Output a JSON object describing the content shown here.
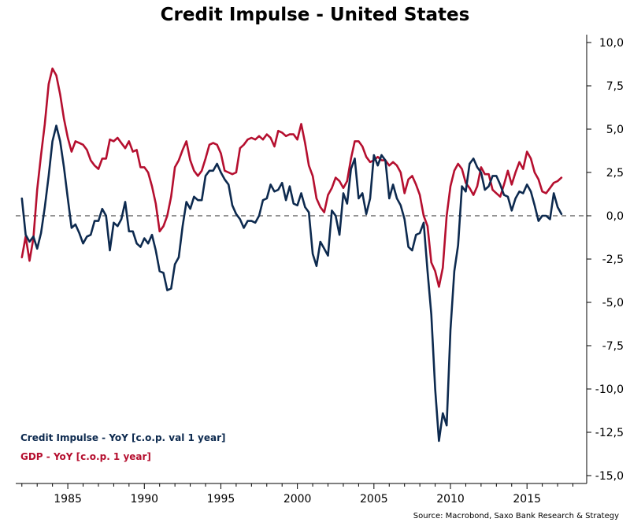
{
  "chart_data": {
    "type": "line",
    "title": "Credit Impulse - United States",
    "source": "Source: Macrobond, Saxo Bank Research & Strategy",
    "xlim": [
      1981.6,
      2018.9
    ],
    "ylim": [
      -15,
      10
    ],
    "x_ticks": [
      1985,
      1990,
      1995,
      2000,
      2005,
      2010,
      2015
    ],
    "y_ticks": [
      {
        "value": 10,
        "label": "10,0"
      },
      {
        "value": 7.5,
        "label": "7,5"
      },
      {
        "value": 5,
        "label": "5,0"
      },
      {
        "value": 2.5,
        "label": "2,5"
      },
      {
        "value": 0,
        "label": "0,0"
      },
      {
        "value": -2.5,
        "label": "-2,5"
      },
      {
        "value": -5,
        "label": "-5,0"
      },
      {
        "value": -7.5,
        "label": "-7,5"
      },
      {
        "value": -10,
        "label": "-10,0"
      },
      {
        "value": -12.5,
        "label": "-12,5"
      },
      {
        "value": -15,
        "label": "-15,0"
      }
    ],
    "zero_line": true,
    "grid": false,
    "legend_position": "bottom-left",
    "series": [
      {
        "name": "Credit Impulse - YoY [c.o.p. val 1 year]",
        "color": "#0d2a4f",
        "points": [
          [
            1982.0,
            1.0
          ],
          [
            1982.25,
            -1.1
          ],
          [
            1982.5,
            -1.5
          ],
          [
            1982.75,
            -1.2
          ],
          [
            1983.0,
            -1.9
          ],
          [
            1983.25,
            -1.0
          ],
          [
            1983.5,
            0.5
          ],
          [
            1983.75,
            2.3
          ],
          [
            1984.0,
            4.3
          ],
          [
            1984.25,
            5.2
          ],
          [
            1984.5,
            4.3
          ],
          [
            1984.75,
            2.8
          ],
          [
            1985.0,
            1.0
          ],
          [
            1985.25,
            -0.7
          ],
          [
            1985.5,
            -0.5
          ],
          [
            1985.75,
            -1.0
          ],
          [
            1986.0,
            -1.6
          ],
          [
            1986.25,
            -1.2
          ],
          [
            1986.5,
            -1.1
          ],
          [
            1986.75,
            -0.3
          ],
          [
            1987.0,
            -0.3
          ],
          [
            1987.25,
            0.4
          ],
          [
            1987.5,
            0.0
          ],
          [
            1987.75,
            -2.0
          ],
          [
            1988.0,
            -0.4
          ],
          [
            1988.25,
            -0.6
          ],
          [
            1988.5,
            -0.2
          ],
          [
            1988.75,
            0.8
          ],
          [
            1989.0,
            -0.9
          ],
          [
            1989.25,
            -0.9
          ],
          [
            1989.5,
            -1.6
          ],
          [
            1989.75,
            -1.8
          ],
          [
            1990.0,
            -1.3
          ],
          [
            1990.25,
            -1.6
          ],
          [
            1990.5,
            -1.1
          ],
          [
            1990.75,
            -2.0
          ],
          [
            1991.0,
            -3.2
          ],
          [
            1991.25,
            -3.3
          ],
          [
            1991.5,
            -4.3
          ],
          [
            1991.75,
            -4.2
          ],
          [
            1992.0,
            -2.8
          ],
          [
            1992.25,
            -2.4
          ],
          [
            1992.5,
            -0.6
          ],
          [
            1992.75,
            0.8
          ],
          [
            1993.0,
            0.4
          ],
          [
            1993.25,
            1.1
          ],
          [
            1993.5,
            0.9
          ],
          [
            1993.75,
            0.9
          ],
          [
            1994.0,
            2.3
          ],
          [
            1994.25,
            2.6
          ],
          [
            1994.5,
            2.6
          ],
          [
            1994.75,
            3.0
          ],
          [
            1995.0,
            2.5
          ],
          [
            1995.25,
            2.1
          ],
          [
            1995.5,
            1.8
          ],
          [
            1995.75,
            0.6
          ],
          [
            1996.0,
            0.1
          ],
          [
            1996.25,
            -0.2
          ],
          [
            1996.5,
            -0.7
          ],
          [
            1996.75,
            -0.3
          ],
          [
            1997.0,
            -0.3
          ],
          [
            1997.25,
            -0.4
          ],
          [
            1997.5,
            0.0
          ],
          [
            1997.75,
            0.9
          ],
          [
            1998.0,
            1.0
          ],
          [
            1998.25,
            1.8
          ],
          [
            1998.5,
            1.4
          ],
          [
            1998.75,
            1.5
          ],
          [
            1999.0,
            1.9
          ],
          [
            1999.25,
            0.9
          ],
          [
            1999.5,
            1.7
          ],
          [
            1999.75,
            0.7
          ],
          [
            2000.0,
            0.6
          ],
          [
            2000.25,
            1.3
          ],
          [
            2000.5,
            0.5
          ],
          [
            2000.75,
            0.2
          ],
          [
            2001.0,
            -2.2
          ],
          [
            2001.25,
            -2.9
          ],
          [
            2001.5,
            -1.5
          ],
          [
            2001.75,
            -1.9
          ],
          [
            2002.0,
            -2.3
          ],
          [
            2002.25,
            0.3
          ],
          [
            2002.5,
            0.0
          ],
          [
            2002.75,
            -1.1
          ],
          [
            2003.0,
            1.3
          ],
          [
            2003.25,
            0.7
          ],
          [
            2003.5,
            2.7
          ],
          [
            2003.75,
            3.3
          ],
          [
            2004.0,
            1.0
          ],
          [
            2004.25,
            1.3
          ],
          [
            2004.5,
            0.1
          ],
          [
            2004.75,
            1.0
          ],
          [
            2005.0,
            3.5
          ],
          [
            2005.25,
            2.9
          ],
          [
            2005.5,
            3.5
          ],
          [
            2005.75,
            3.2
          ],
          [
            2006.0,
            1.0
          ],
          [
            2006.25,
            1.8
          ],
          [
            2006.5,
            1.0
          ],
          [
            2006.75,
            0.6
          ],
          [
            2007.0,
            -0.2
          ],
          [
            2007.25,
            -1.8
          ],
          [
            2007.5,
            -2.0
          ],
          [
            2007.75,
            -1.1
          ],
          [
            2008.0,
            -1.0
          ],
          [
            2008.25,
            -0.4
          ],
          [
            2008.5,
            -3.2
          ],
          [
            2008.75,
            -5.7
          ],
          [
            2009.0,
            -10.0
          ],
          [
            2009.25,
            -13.0
          ],
          [
            2009.5,
            -11.4
          ],
          [
            2009.75,
            -12.1
          ],
          [
            2010.0,
            -6.6
          ],
          [
            2010.25,
            -3.2
          ],
          [
            2010.5,
            -1.7
          ],
          [
            2010.75,
            1.7
          ],
          [
            2011.0,
            1.4
          ],
          [
            2011.25,
            3.0
          ],
          [
            2011.5,
            3.3
          ],
          [
            2011.75,
            2.8
          ],
          [
            2012.0,
            2.5
          ],
          [
            2012.25,
            1.5
          ],
          [
            2012.5,
            1.7
          ],
          [
            2012.75,
            2.3
          ],
          [
            2013.0,
            2.3
          ],
          [
            2013.25,
            1.8
          ],
          [
            2013.5,
            1.2
          ],
          [
            2013.75,
            1.1
          ],
          [
            2014.0,
            0.3
          ],
          [
            2014.25,
            1.0
          ],
          [
            2014.5,
            1.4
          ],
          [
            2014.75,
            1.3
          ],
          [
            2015.0,
            1.8
          ],
          [
            2015.25,
            1.4
          ],
          [
            2015.5,
            0.6
          ],
          [
            2015.75,
            -0.3
          ],
          [
            2016.0,
            0.0
          ],
          [
            2016.25,
            0.0
          ],
          [
            2016.5,
            -0.2
          ],
          [
            2016.75,
            1.3
          ],
          [
            2017.0,
            0.5
          ],
          [
            2017.25,
            0.1
          ]
        ]
      },
      {
        "name": "GDP - YoY  [c.o.p. 1 year]",
        "color": "#b50f2f",
        "points": [
          [
            1982.0,
            -2.4
          ],
          [
            1982.25,
            -1.2
          ],
          [
            1982.5,
            -2.6
          ],
          [
            1982.75,
            -1.3
          ],
          [
            1983.0,
            1.5
          ],
          [
            1983.25,
            3.5
          ],
          [
            1983.5,
            5.3
          ],
          [
            1983.75,
            7.6
          ],
          [
            1984.0,
            8.5
          ],
          [
            1984.25,
            8.1
          ],
          [
            1984.5,
            7.0
          ],
          [
            1984.75,
            5.6
          ],
          [
            1985.0,
            4.5
          ],
          [
            1985.25,
            3.7
          ],
          [
            1985.5,
            4.3
          ],
          [
            1985.75,
            4.2
          ],
          [
            1986.0,
            4.1
          ],
          [
            1986.25,
            3.8
          ],
          [
            1986.5,
            3.2
          ],
          [
            1986.75,
            2.9
          ],
          [
            1987.0,
            2.7
          ],
          [
            1987.25,
            3.3
          ],
          [
            1987.5,
            3.3
          ],
          [
            1987.75,
            4.4
          ],
          [
            1988.0,
            4.3
          ],
          [
            1988.25,
            4.5
          ],
          [
            1988.5,
            4.2
          ],
          [
            1988.75,
            3.9
          ],
          [
            1989.0,
            4.3
          ],
          [
            1989.25,
            3.7
          ],
          [
            1989.5,
            3.8
          ],
          [
            1989.75,
            2.8
          ],
          [
            1990.0,
            2.8
          ],
          [
            1990.25,
            2.5
          ],
          [
            1990.5,
            1.7
          ],
          [
            1990.75,
            0.7
          ],
          [
            1991.0,
            -0.9
          ],
          [
            1991.25,
            -0.6
          ],
          [
            1991.5,
            0.0
          ],
          [
            1991.75,
            1.1
          ],
          [
            1992.0,
            2.8
          ],
          [
            1992.25,
            3.2
          ],
          [
            1992.5,
            3.8
          ],
          [
            1992.75,
            4.3
          ],
          [
            1993.0,
            3.2
          ],
          [
            1993.25,
            2.6
          ],
          [
            1993.5,
            2.3
          ],
          [
            1993.75,
            2.6
          ],
          [
            1994.0,
            3.3
          ],
          [
            1994.25,
            4.1
          ],
          [
            1994.5,
            4.2
          ],
          [
            1994.75,
            4.1
          ],
          [
            1995.0,
            3.6
          ],
          [
            1995.25,
            2.6
          ],
          [
            1995.5,
            2.5
          ],
          [
            1995.75,
            2.4
          ],
          [
            1996.0,
            2.5
          ],
          [
            1996.25,
            3.9
          ],
          [
            1996.5,
            4.1
          ],
          [
            1996.75,
            4.4
          ],
          [
            1997.0,
            4.5
          ],
          [
            1997.25,
            4.4
          ],
          [
            1997.5,
            4.6
          ],
          [
            1997.75,
            4.4
          ],
          [
            1998.0,
            4.7
          ],
          [
            1998.25,
            4.5
          ],
          [
            1998.5,
            4.0
          ],
          [
            1998.75,
            4.9
          ],
          [
            1999.0,
            4.8
          ],
          [
            1999.25,
            4.6
          ],
          [
            1999.5,
            4.7
          ],
          [
            1999.75,
            4.7
          ],
          [
            2000.0,
            4.4
          ],
          [
            2000.25,
            5.3
          ],
          [
            2000.5,
            4.2
          ],
          [
            2000.75,
            2.9
          ],
          [
            2001.0,
            2.3
          ],
          [
            2001.25,
            1.0
          ],
          [
            2001.5,
            0.5
          ],
          [
            2001.75,
            0.2
          ],
          [
            2002.0,
            1.2
          ],
          [
            2002.25,
            1.6
          ],
          [
            2002.5,
            2.2
          ],
          [
            2002.75,
            2.0
          ],
          [
            2003.0,
            1.6
          ],
          [
            2003.25,
            2.0
          ],
          [
            2003.5,
            3.3
          ],
          [
            2003.75,
            4.3
          ],
          [
            2004.0,
            4.3
          ],
          [
            2004.25,
            4.0
          ],
          [
            2004.5,
            3.4
          ],
          [
            2004.75,
            3.1
          ],
          [
            2005.0,
            3.2
          ],
          [
            2005.25,
            3.4
          ],
          [
            2005.5,
            3.2
          ],
          [
            2005.75,
            3.2
          ],
          [
            2006.0,
            2.9
          ],
          [
            2006.25,
            3.1
          ],
          [
            2006.5,
            2.9
          ],
          [
            2006.75,
            2.5
          ],
          [
            2007.0,
            1.3
          ],
          [
            2007.25,
            2.1
          ],
          [
            2007.5,
            2.3
          ],
          [
            2007.75,
            1.8
          ],
          [
            2008.0,
            1.2
          ],
          [
            2008.25,
            0.0
          ],
          [
            2008.5,
            -0.6
          ],
          [
            2008.75,
            -2.7
          ],
          [
            2009.0,
            -3.2
          ],
          [
            2009.25,
            -4.1
          ],
          [
            2009.5,
            -3.0
          ],
          [
            2009.75,
            0.0
          ],
          [
            2010.0,
            1.7
          ],
          [
            2010.25,
            2.6
          ],
          [
            2010.5,
            3.0
          ],
          [
            2010.75,
            2.7
          ],
          [
            2011.0,
            1.9
          ],
          [
            2011.25,
            1.6
          ],
          [
            2011.5,
            1.2
          ],
          [
            2011.75,
            1.7
          ],
          [
            2012.0,
            2.8
          ],
          [
            2012.25,
            2.4
          ],
          [
            2012.5,
            2.4
          ],
          [
            2012.75,
            1.5
          ],
          [
            2013.0,
            1.3
          ],
          [
            2013.25,
            1.1
          ],
          [
            2013.5,
            1.8
          ],
          [
            2013.75,
            2.6
          ],
          [
            2014.0,
            1.8
          ],
          [
            2014.25,
            2.5
          ],
          [
            2014.5,
            3.1
          ],
          [
            2014.75,
            2.7
          ],
          [
            2015.0,
            3.7
          ],
          [
            2015.25,
            3.3
          ],
          [
            2015.5,
            2.5
          ],
          [
            2015.75,
            2.1
          ],
          [
            2016.0,
            1.4
          ],
          [
            2016.25,
            1.3
          ],
          [
            2016.5,
            1.6
          ],
          [
            2016.75,
            1.9
          ],
          [
            2017.0,
            2.0
          ],
          [
            2017.25,
            2.2
          ]
        ]
      }
    ]
  }
}
